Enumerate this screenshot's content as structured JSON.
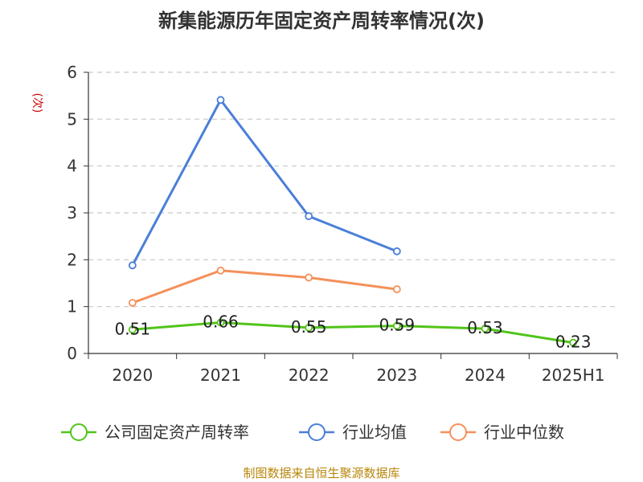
{
  "chart_data": {
    "type": "line",
    "title": "新集能源历年固定资产周转率情况(次)",
    "ylabel": "(次)",
    "xlabel": "",
    "categories": [
      "2020",
      "2021",
      "2022",
      "2023",
      "2024",
      "2025H1"
    ],
    "ylim": [
      0,
      6
    ],
    "yticks": [
      0,
      1,
      2,
      3,
      4,
      5,
      6
    ],
    "grid": true,
    "legend_position": "bottom",
    "series": [
      {
        "name": "公司固定资产周转率",
        "color": "#52c41a",
        "values": [
          0.51,
          0.66,
          0.55,
          0.59,
          0.53,
          0.23
        ],
        "data_labels": [
          "0.51",
          "0.66",
          "0.55",
          "0.59",
          "0.53",
          "0.23"
        ]
      },
      {
        "name": "行业均值",
        "color": "#4a7fd8",
        "values": [
          1.88,
          5.41,
          2.93,
          2.18,
          null,
          null
        ]
      },
      {
        "name": "行业中位数",
        "color": "#f4905a",
        "values": [
          1.08,
          1.77,
          1.62,
          1.37,
          null,
          null
        ]
      }
    ]
  },
  "source": "制图数据来自恒生聚源数据库"
}
